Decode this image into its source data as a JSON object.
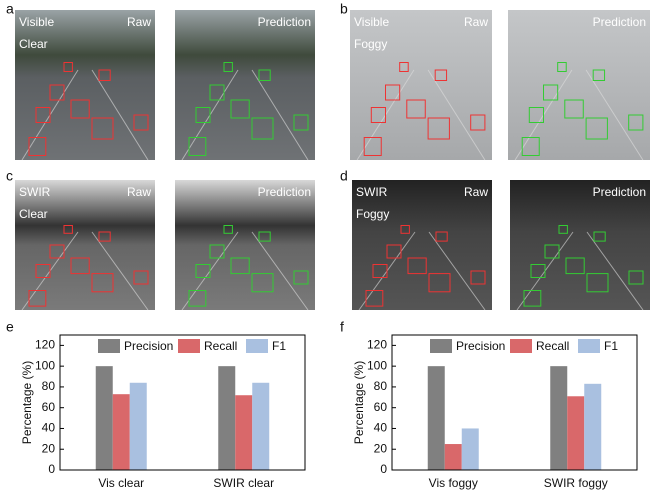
{
  "panels": [
    {
      "label": "a",
      "tags": [
        "Visible",
        "Clear"
      ],
      "left_title": "Raw",
      "right_title": "Prediction"
    },
    {
      "label": "b",
      "tags": [
        "Visible",
        "Foggy"
      ],
      "left_title": "Raw",
      "right_title": "Prediction"
    },
    {
      "label": "c",
      "tags": [
        "SWIR",
        "Clear"
      ],
      "left_title": "Raw",
      "right_title": "Prediction"
    },
    {
      "label": "d",
      "tags": [
        "SWIR",
        "Foggy"
      ],
      "left_title": "Raw",
      "right_title": "Prediction"
    }
  ],
  "chart_data": [
    {
      "type": "bar",
      "label": "e",
      "y_label": "Percentage (%)",
      "categories": [
        "Vis clear",
        "SWIR clear"
      ],
      "series": [
        {
          "name": "Precision",
          "color": "#808080",
          "values": [
            100,
            100
          ]
        },
        {
          "name": "Recall",
          "color": "#d9686a",
          "values": [
            73,
            72
          ]
        },
        {
          "name": "F1",
          "color": "#a9c0e0",
          "values": [
            84,
            84
          ]
        }
      ],
      "ylim": [
        0,
        130
      ],
      "yticks": [
        0,
        20,
        40,
        60,
        80,
        100,
        120
      ]
    },
    {
      "type": "bar",
      "label": "f",
      "y_label": "Percentage (%)",
      "categories": [
        "Vis foggy",
        "SWIR foggy"
      ],
      "series": [
        {
          "name": "Precision",
          "color": "#808080",
          "values": [
            100,
            100
          ]
        },
        {
          "name": "Recall",
          "color": "#d9686a",
          "values": [
            25,
            71
          ]
        },
        {
          "name": "F1",
          "color": "#a9c0e0",
          "values": [
            40,
            83
          ]
        }
      ],
      "ylim": [
        0,
        130
      ],
      "yticks": [
        0,
        20,
        40,
        60,
        80,
        100,
        120
      ]
    }
  ]
}
